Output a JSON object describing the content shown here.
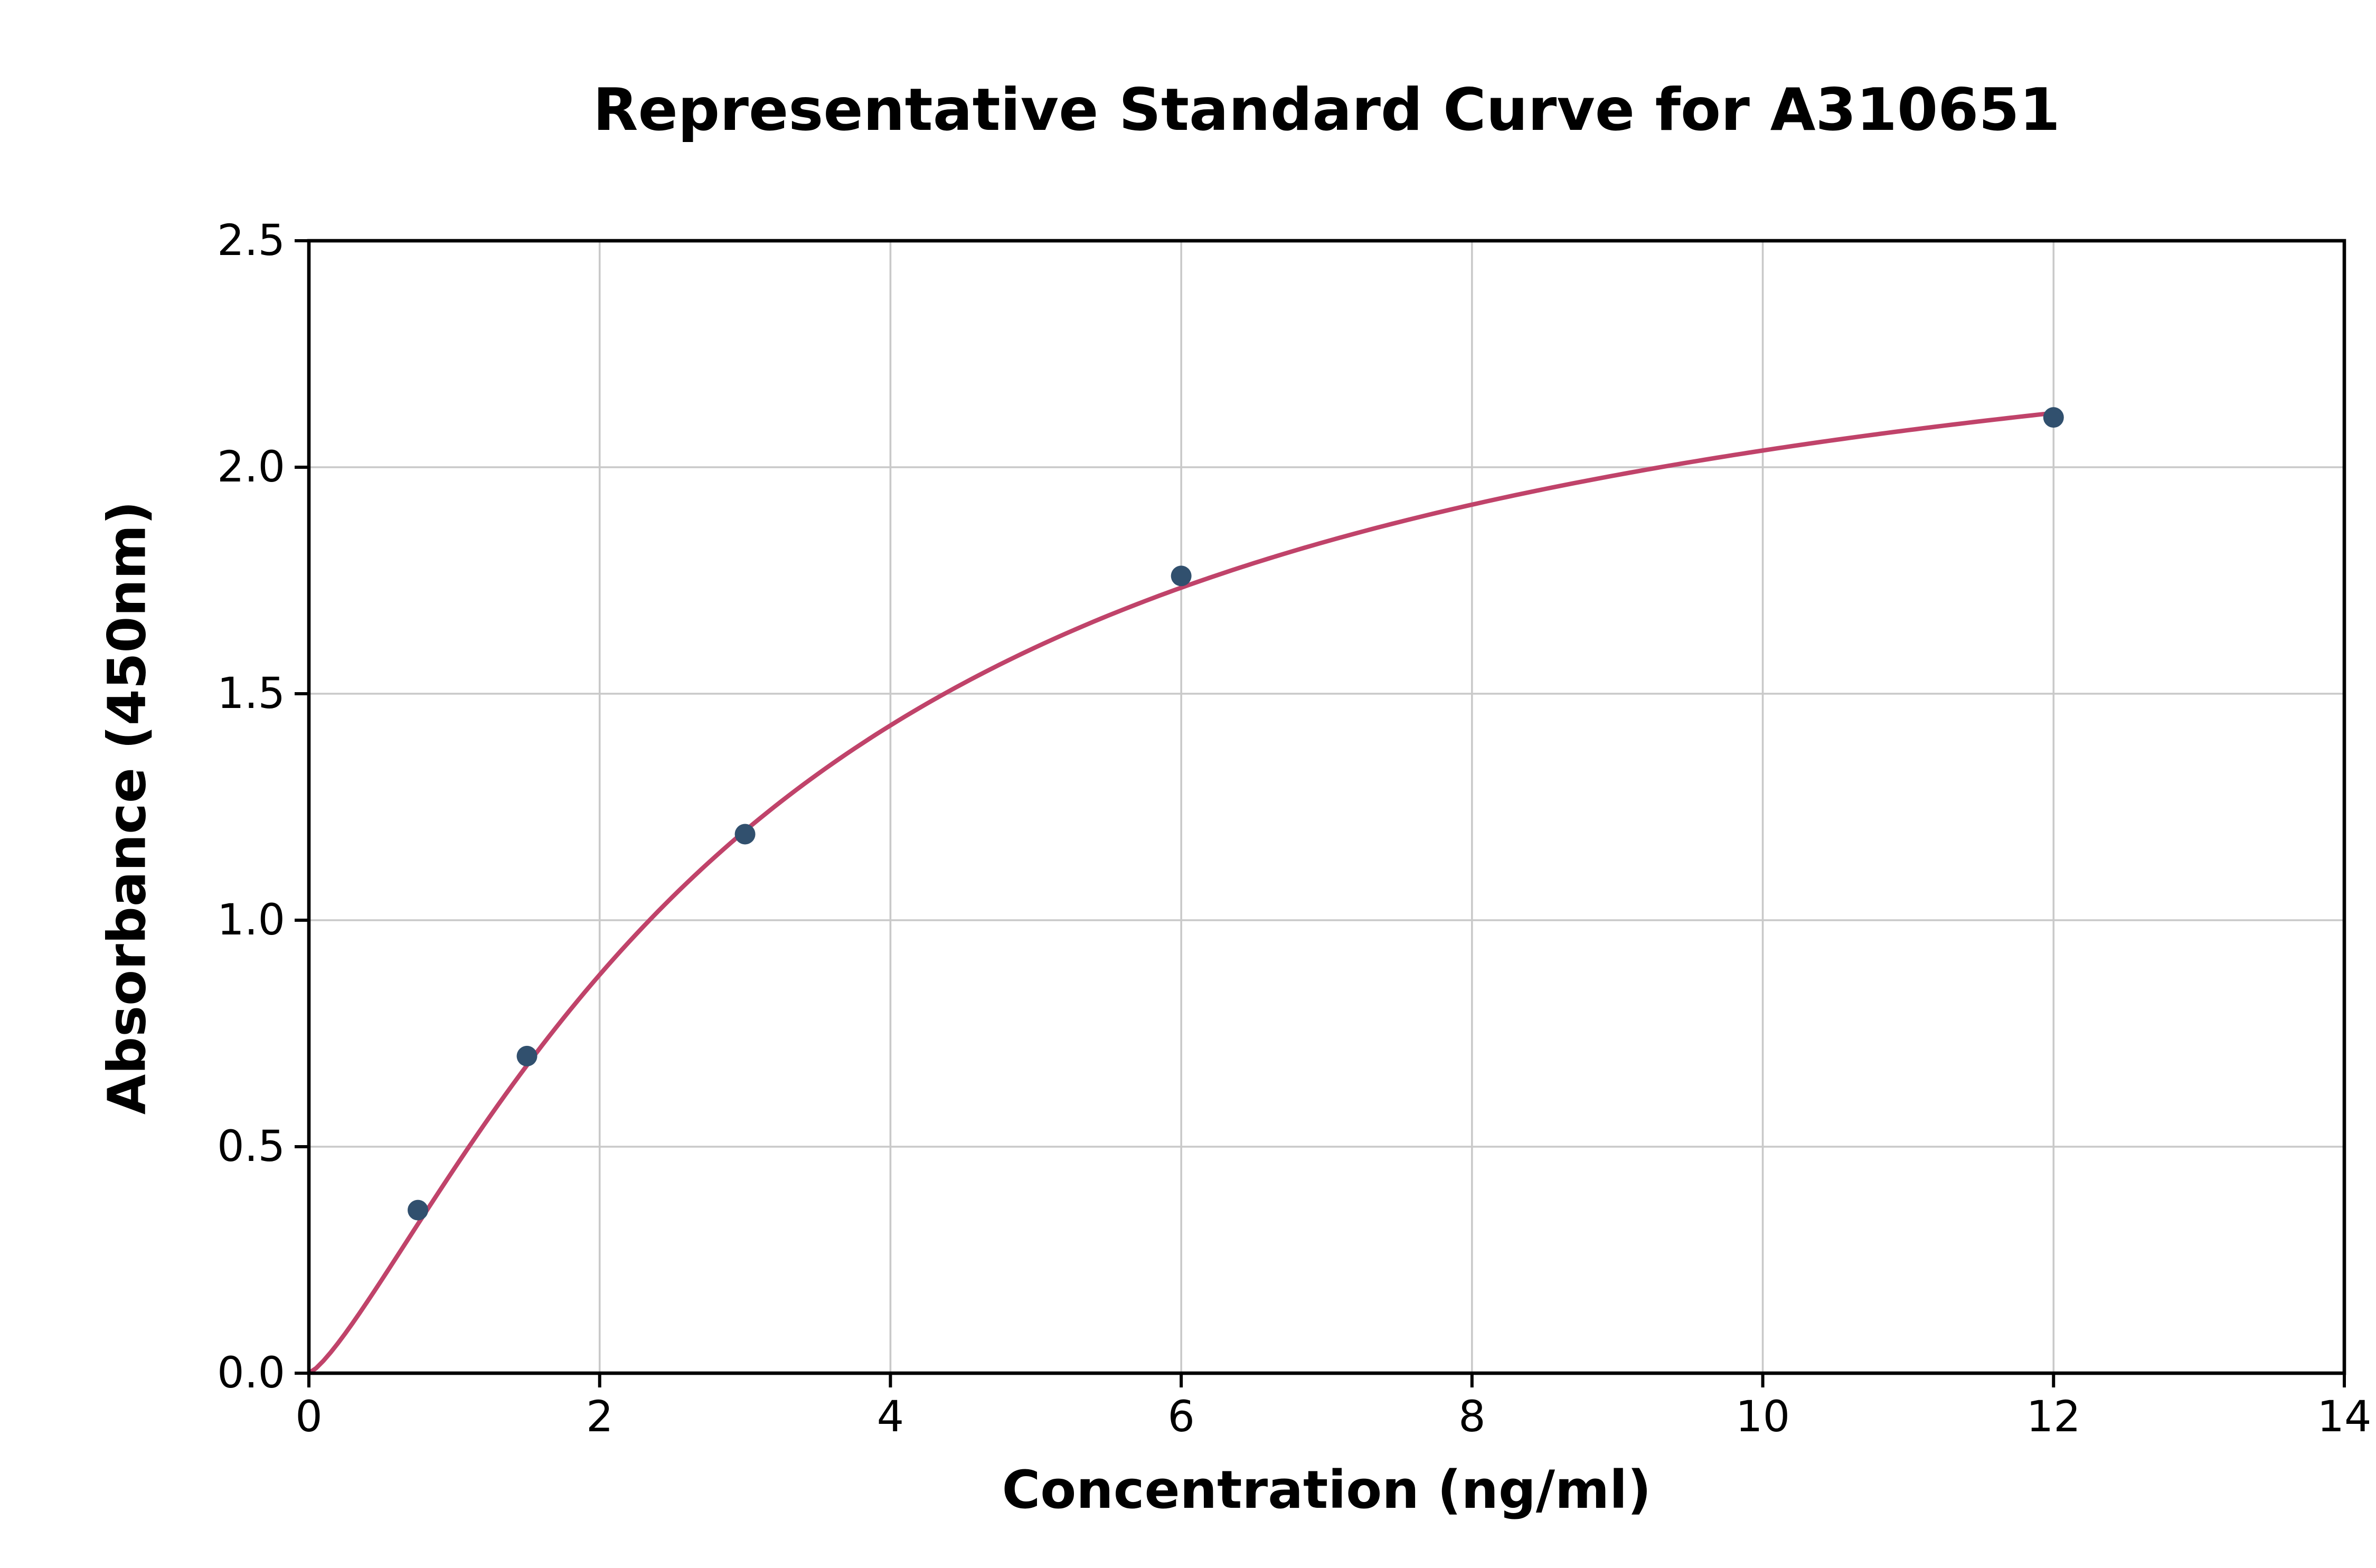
{
  "chart_data": {
    "type": "scatter",
    "title": "Representative Standard Curve for A310651",
    "xlabel": "Concentration (ng/ml)",
    "ylabel": "Absorbance (450nm)",
    "xlim": [
      0,
      14
    ],
    "ylim": [
      0,
      2.5
    ],
    "x_ticks": [
      0,
      2,
      4,
      6,
      8,
      10,
      12,
      14
    ],
    "x_tick_labels": [
      "0",
      "2",
      "4",
      "6",
      "8",
      "10",
      "12",
      "14"
    ],
    "y_ticks": [
      0.0,
      0.5,
      1.0,
      1.5,
      2.0,
      2.5
    ],
    "y_tick_labels": [
      "0.0",
      "0.5",
      "1.0",
      "1.5",
      "2.0",
      "2.5"
    ],
    "grid": true,
    "legend": "none",
    "points": {
      "name": "standards",
      "x": [
        0.75,
        1.5,
        3,
        6,
        12
      ],
      "y": [
        0.36,
        0.7,
        1.19,
        1.76,
        2.11
      ],
      "color": "#31506e",
      "marker_radius": 6.5
    },
    "fit_curve": {
      "name": "standard-curve-fit",
      "model": "4PL",
      "params": {
        "a": 0.0,
        "b": 1.3,
        "c": 3.2,
        "d": 2.5
      },
      "x_range": [
        0,
        12
      ],
      "color": "#c0436a",
      "width": 2.8
    },
    "colors": {
      "grid": "#c9c9c9",
      "spine": "#000000",
      "background": "#ffffff",
      "text": "#000000"
    }
  }
}
